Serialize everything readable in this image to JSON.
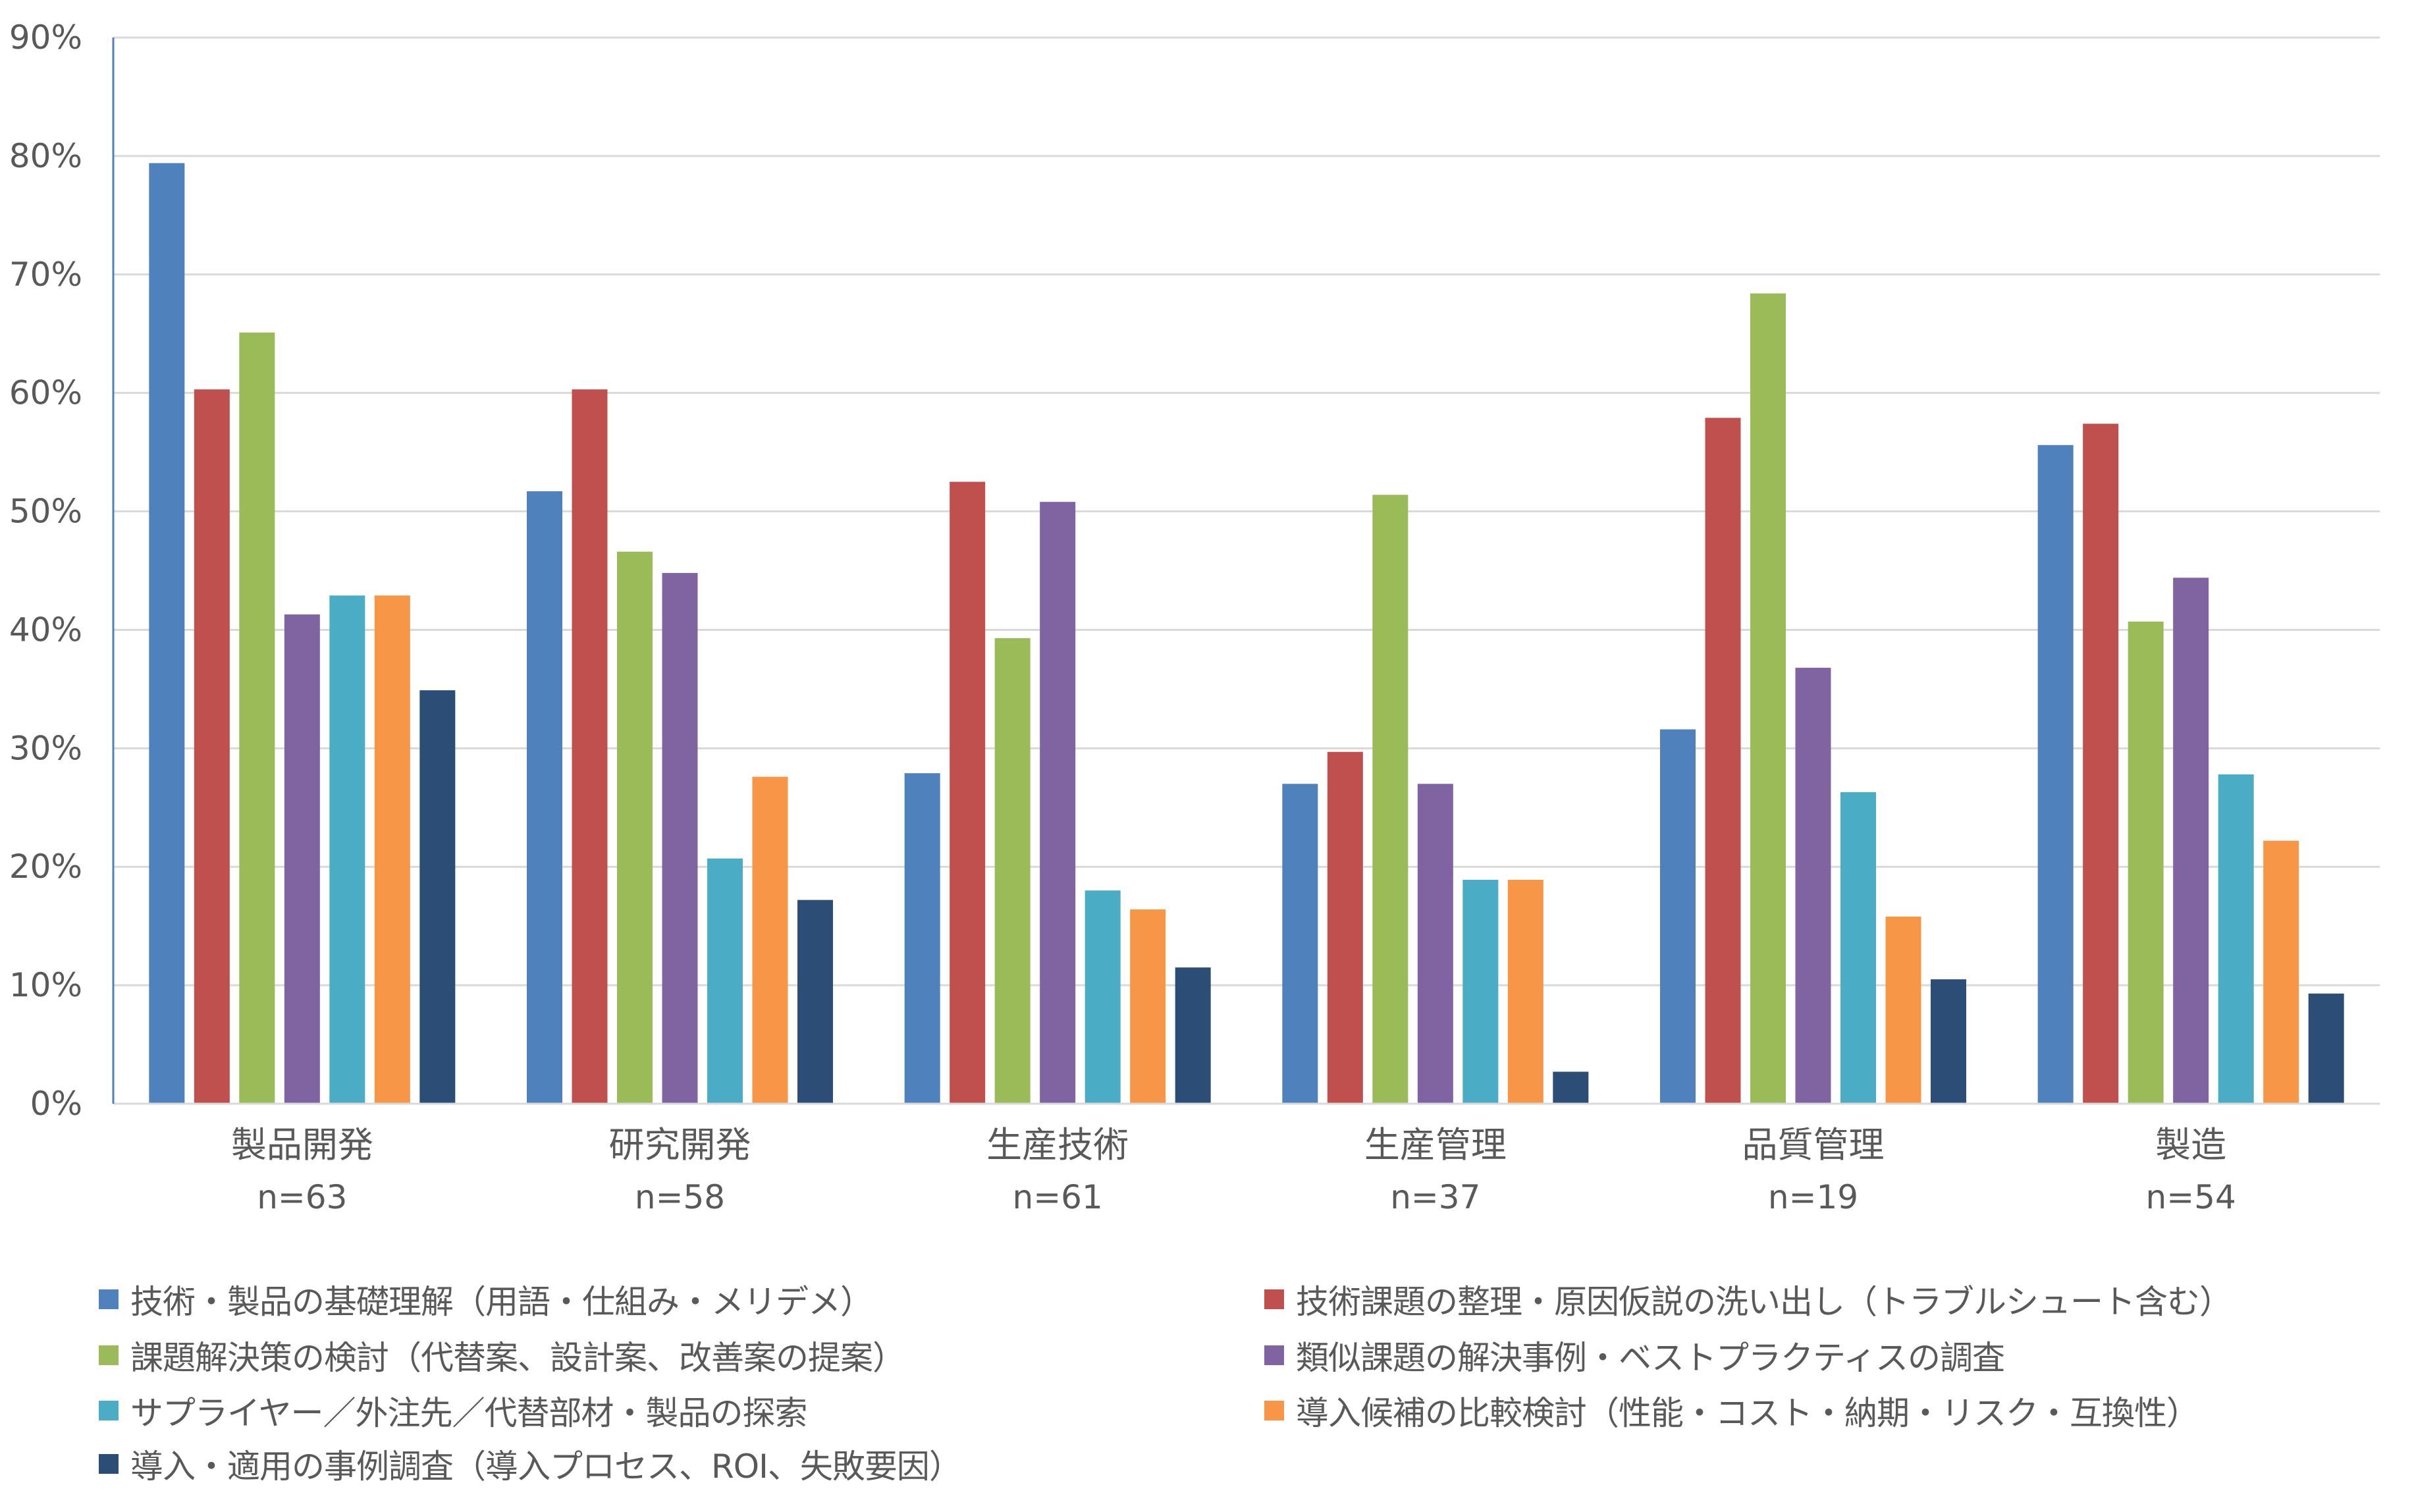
{
  "chart_data": {
    "type": "bar",
    "title": "",
    "xlabel": "",
    "ylabel": "",
    "ylim": [
      0,
      0.9
    ],
    "yticks": [
      0,
      0.1,
      0.2,
      0.3,
      0.4,
      0.5,
      0.6,
      0.7,
      0.8,
      0.9
    ],
    "ytick_labels": [
      "0%",
      "10%",
      "20%",
      "30%",
      "40%",
      "50%",
      "60%",
      "70%",
      "80%",
      "90%"
    ],
    "grid": true,
    "legend_position": "bottom",
    "categories": [
      {
        "name": "製品開発",
        "n": "n=63"
      },
      {
        "name": "研究開発",
        "n": "n=58"
      },
      {
        "name": "生産技術",
        "n": "n=61"
      },
      {
        "name": "生産管理",
        "n": "n=37"
      },
      {
        "name": "品質管理",
        "n": "n=19"
      },
      {
        "name": "製造",
        "n": "n=54"
      }
    ],
    "series": [
      {
        "name": "技術・製品の基礎理解（用語・仕組み・メリデメ）",
        "color": "#4F81BD",
        "values": [
          0.794,
          0.517,
          0.279,
          0.27,
          0.316,
          0.556
        ]
      },
      {
        "name": "技術課題の整理・原因仮説の洗い出し（トラブルシュート含む）",
        "color": "#C0504D",
        "values": [
          0.603,
          0.603,
          0.525,
          0.297,
          0.579,
          0.574
        ]
      },
      {
        "name": "課題解決策の検討（代替案、設計案、改善案の提案）",
        "color": "#9BBB59",
        "values": [
          0.651,
          0.466,
          0.393,
          0.514,
          0.684,
          0.407
        ]
      },
      {
        "name": "類似課題の解決事例・ベストプラクティスの調査",
        "color": "#8064A2",
        "values": [
          0.413,
          0.448,
          0.508,
          0.27,
          0.368,
          0.444
        ]
      },
      {
        "name": "サプライヤー／外注先／代替部材・製品の探索",
        "color": "#4BACC6",
        "values": [
          0.429,
          0.207,
          0.18,
          0.189,
          0.263,
          0.278
        ]
      },
      {
        "name": "導入候補の比較検討（性能・コスト・納期・リスク・互換性）",
        "color": "#F79646",
        "values": [
          0.429,
          0.276,
          0.164,
          0.189,
          0.158,
          0.222
        ]
      },
      {
        "name": "導入・適用の事例調査（導入プロセス、ROI、失敗要因）",
        "color": "#2C4D75",
        "values": [
          0.349,
          0.172,
          0.115,
          0.027,
          0.105,
          0.093
        ]
      }
    ]
  },
  "colors": {
    "grid": "#D9D9D9",
    "axis": "#4F81BD",
    "text": "#595959"
  }
}
